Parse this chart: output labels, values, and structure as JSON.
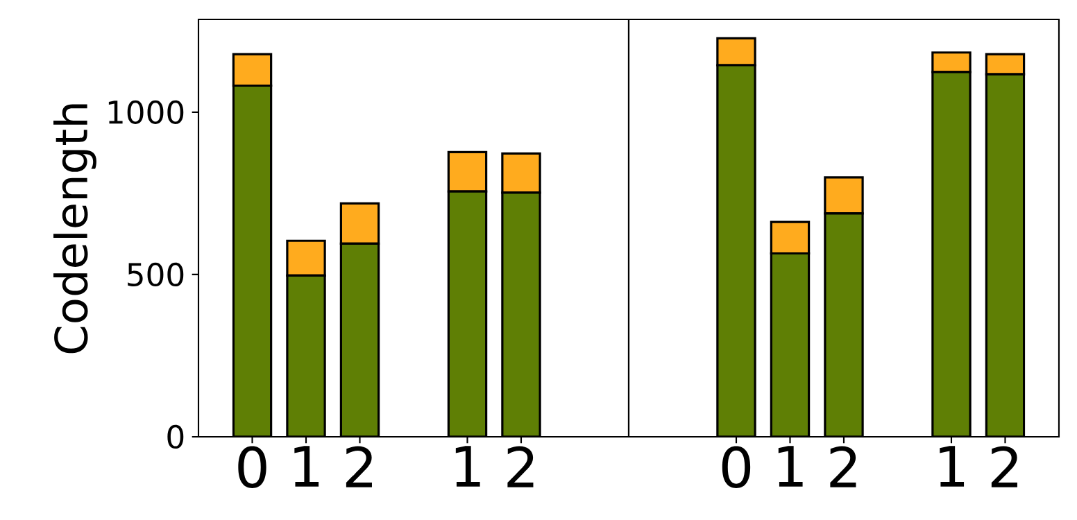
{
  "chart_data": [
    {
      "type": "bar",
      "stacked": true,
      "ylabel": "Codelength",
      "categories": [
        "0",
        "1",
        "2",
        null,
        "1",
        "2",
        null
      ],
      "ylim": [
        0,
        1286
      ],
      "yticks": [
        0,
        500,
        1000
      ],
      "series": [
        {
          "color": "#5f7f05",
          "values": [
            1082,
            497,
            595,
            null,
            756,
            752,
            null
          ]
        },
        {
          "color": "#ffab1e",
          "values": [
            97,
            107,
            124,
            null,
            121,
            121,
            null
          ]
        }
      ]
    },
    {
      "type": "bar",
      "stacked": true,
      "tick_labels": "x",
      "categories": [
        null,
        "0",
        "1",
        "2",
        null,
        "1",
        "2"
      ],
      "ylim": [
        0,
        1286
      ],
      "yticks": [
        0,
        500,
        1000
      ],
      "series": [
        {
          "color": "#5f7f05",
          "values": [
            null,
            1145,
            565,
            688,
            null,
            1124,
            1117
          ]
        },
        {
          "color": "#ffab1e",
          "values": [
            null,
            83,
            97,
            111,
            null,
            60,
            62
          ]
        }
      ]
    }
  ]
}
